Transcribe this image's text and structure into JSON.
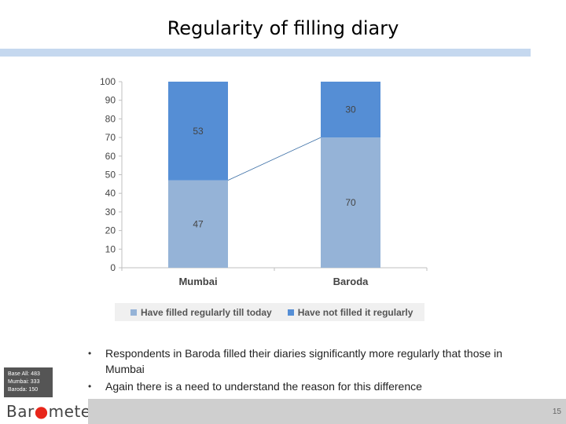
{
  "title": "Regularity of filling diary",
  "chart_data": {
    "type": "bar",
    "stacked": true,
    "categories": [
      "Mumbai",
      "Baroda"
    ],
    "series": [
      {
        "name": "Have filled regularly till today",
        "values": [
          47,
          70
        ],
        "color": "#95b3d7"
      },
      {
        "name": "Have not filled it regularly",
        "values": [
          53,
          30
        ],
        "color": "#558ed5"
      }
    ],
    "ylim": [
      0,
      100
    ],
    "yticks": [
      0,
      10,
      20,
      30,
      40,
      50,
      60,
      70,
      80,
      90,
      100
    ],
    "legend_position": "bottom",
    "series_line": true
  },
  "base_box": {
    "line1": "Base All: 483",
    "line2": "Mumbai: 333",
    "line3": "Baroda: 150"
  },
  "bullets": [
    "Respondents in Baroda filled their diaries significantly more regularly that those in Mumbai",
    "Again there is a need to understand the reason for this difference"
  ],
  "footer": {
    "logo_part1": "Bar",
    "logo_dot": "●",
    "logo_part2": "meter",
    "page_number": "15"
  }
}
